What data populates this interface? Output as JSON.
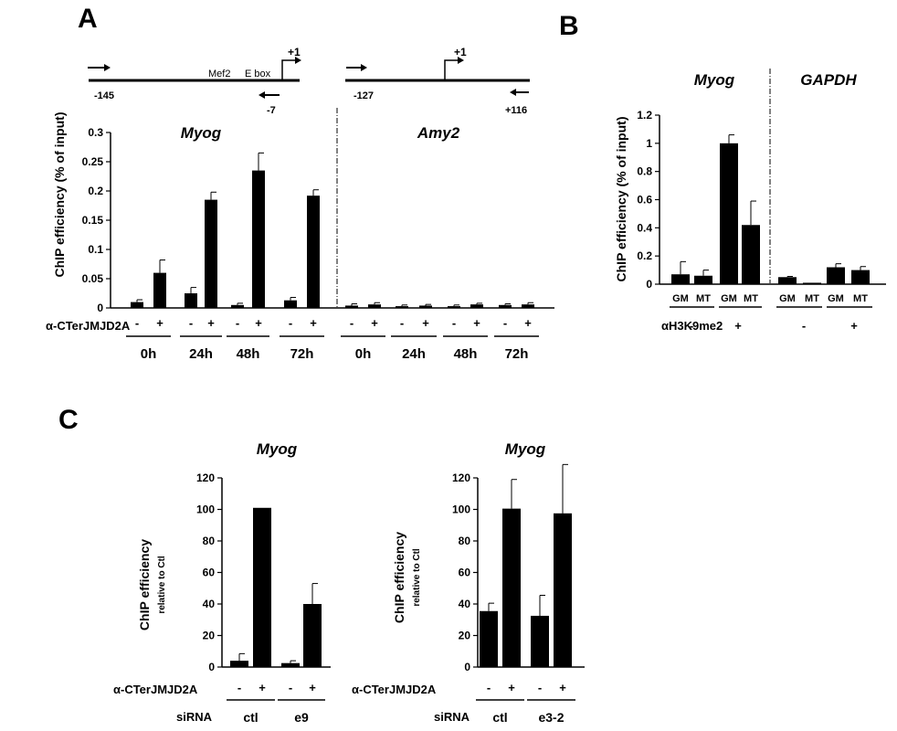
{
  "panels": {
    "A": {
      "letter": "A",
      "ylabel": "ChIP efficiency (% of input)",
      "row_label": "α-CTerJMJD2A",
      "schematic": {
        "myog": {
          "top_label": "+1",
          "mef2": "Mef2",
          "ebox": "E box",
          "left_coord": "-145",
          "right_coord": "-7"
        },
        "amy2": {
          "top_label": "+1",
          "left_coord": "-127",
          "right_coord": "+116"
        }
      }
    },
    "B": {
      "letter": "B",
      "ylabel": "ChIP efficiency (% of input)",
      "row_label": "αH3K9me2"
    },
    "C": {
      "letter": "C",
      "ylabel": "ChIP efficiency",
      "ylabel_sub": "relative to Ctl",
      "row_label": "α-CTerJMJD2A",
      "sirna_label": "siRNA"
    }
  },
  "chart_data": [
    {
      "id": "A",
      "type": "bar",
      "ylim": [
        0,
        0.3
      ],
      "yticks": [
        "0",
        "0.05",
        "0.1",
        "0.15",
        "0.2",
        "0.25",
        "0.3"
      ],
      "groups": [
        {
          "gene": "Myog",
          "timepoints": [
            "0h",
            "24h",
            "48h",
            "72h"
          ],
          "values": [
            0.01,
            0.06,
            0.025,
            0.185,
            0.005,
            0.235,
            0.013,
            0.192
          ],
          "errors": [
            0.004,
            0.022,
            0.01,
            0.013,
            0.003,
            0.03,
            0.005,
            0.01
          ]
        },
        {
          "gene": "Amy2",
          "timepoints": [
            "0h",
            "24h",
            "48h",
            "72h"
          ],
          "values": [
            0.004,
            0.006,
            0.003,
            0.004,
            0.003,
            0.006,
            0.005,
            0.006
          ],
          "errors": [
            0.003,
            0.003,
            0.002,
            0.002,
            0.002,
            0.002,
            0.002,
            0.003
          ]
        }
      ],
      "treatment": [
        "-",
        "+"
      ]
    },
    {
      "id": "B",
      "type": "bar",
      "ylim": [
        0,
        1.2
      ],
      "yticks": [
        "0",
        "0.2",
        "0.4",
        "0.6",
        "0.8",
        "1",
        "1.2"
      ],
      "groups": [
        {
          "gene": "Myog",
          "conditions": [
            "GM",
            "MT",
            "GM",
            "MT"
          ],
          "values": [
            0.07,
            0.06,
            1.0,
            0.42
          ],
          "errors": [
            0.09,
            0.04,
            0.06,
            0.17
          ]
        },
        {
          "gene": "GAPDH",
          "conditions": [
            "GM",
            "MT",
            "GM",
            "MT"
          ],
          "values": [
            0.05,
            0.01,
            0.12,
            0.1
          ],
          "errors": [
            0.005,
            0.0,
            0.025,
            0.025
          ]
        }
      ],
      "treatment": [
        "-",
        "+"
      ]
    },
    {
      "id": "C-left",
      "type": "bar",
      "title": "Myog",
      "ylim": [
        0,
        120
      ],
      "yticks": [
        "0",
        "20",
        "40",
        "60",
        "80",
        "100",
        "120"
      ],
      "sirna": [
        "ctl",
        "e9"
      ],
      "values": [
        4,
        101,
        2.5,
        40
      ],
      "errors": [
        4.5,
        0,
        1.5,
        13
      ],
      "treatment": [
        "-",
        "+"
      ]
    },
    {
      "id": "C-right",
      "type": "bar",
      "title": "Myog",
      "ylim": [
        0,
        120
      ],
      "yticks": [
        "0",
        "20",
        "40",
        "60",
        "80",
        "100",
        "120"
      ],
      "sirna": [
        "ctl",
        "e3-2"
      ],
      "values": [
        35.5,
        100.5,
        32.5,
        97.5
      ],
      "errors": [
        5,
        18.5,
        13,
        31
      ],
      "treatment": [
        "-",
        "+"
      ]
    }
  ]
}
